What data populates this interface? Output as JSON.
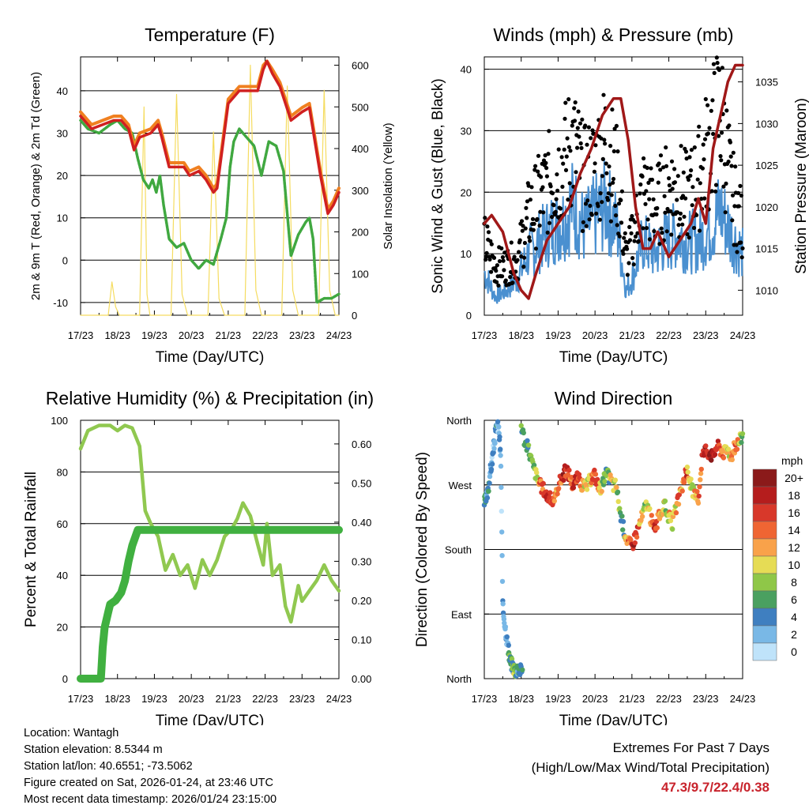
{
  "colors": {
    "temp_2m": "#d02020",
    "temp_9m": "#f08020",
    "dewpoint": "#40a840",
    "solar": "#f5dc60",
    "wind": "#4a90d0",
    "gust": "#000000",
    "pressure": "#a01818",
    "rh": "#90c850",
    "precip": "#40b040",
    "highlight": "#c8232c"
  },
  "chart_data": [
    {
      "id": "temperature",
      "type": "line",
      "title": "Temperature (F)",
      "xlabel": "Time (Day/UTC)",
      "ylabel": "2m & 9m T (Red, Orange) & 2m Td (Green)",
      "y2label": "Solar Insolation (Yellow)",
      "categories": [
        "17/23",
        "18/23",
        "19/23",
        "20/23",
        "21/23",
        "22/23",
        "23/23",
        "24/23"
      ],
      "xlim": [
        0,
        7
      ],
      "ylim": [
        -13,
        48
      ],
      "y2lim": [
        0,
        620
      ],
      "yticks": [
        -10,
        0,
        10,
        20,
        30,
        40
      ],
      "y2ticks": [
        0,
        100,
        200,
        300,
        400,
        500,
        600
      ],
      "gridlines": [
        -10,
        0,
        10,
        20,
        30,
        40
      ],
      "series": [
        {
          "name": "2m T",
          "x": [
            0,
            0.3,
            0.6,
            0.9,
            1.1,
            1.3,
            1.45,
            1.6,
            1.9,
            2.1,
            2.2,
            2.4,
            2.6,
            2.8,
            2.95,
            3.2,
            3.4,
            3.6,
            3.7,
            4.0,
            4.3,
            4.6,
            4.8,
            4.95,
            5.05,
            5.2,
            5.4,
            5.7,
            6.0,
            6.2,
            6.5,
            6.7,
            6.85,
            7.0
          ],
          "values": [
            34,
            31,
            32,
            33,
            33,
            31,
            26,
            29,
            30,
            32,
            29,
            22,
            22,
            22,
            20,
            21,
            19,
            16,
            17,
            37,
            40,
            40,
            40,
            45,
            47,
            44,
            41,
            33,
            35,
            36,
            20,
            11,
            13,
            16
          ]
        },
        {
          "name": "9m T",
          "x": [
            0,
            0.3,
            0.6,
            0.9,
            1.1,
            1.3,
            1.45,
            1.6,
            1.9,
            2.1,
            2.2,
            2.4,
            2.6,
            2.8,
            2.95,
            3.2,
            3.4,
            3.6,
            3.7,
            4.0,
            4.3,
            4.6,
            4.8,
            4.95,
            5.05,
            5.2,
            5.4,
            5.7,
            6.0,
            6.2,
            6.5,
            6.7,
            6.85,
            7.0
          ],
          "values": [
            35,
            32,
            33,
            34,
            34,
            32,
            27,
            30,
            31,
            33,
            30,
            23,
            23,
            23,
            21,
            22,
            20,
            17,
            18,
            38,
            41,
            41,
            41,
            46,
            47,
            45,
            42,
            34,
            36,
            37,
            21,
            12,
            14,
            17
          ]
        },
        {
          "name": "2m Td",
          "x": [
            0,
            0.2,
            0.5,
            0.8,
            1.0,
            1.2,
            1.4,
            1.55,
            1.7,
            1.85,
            1.95,
            2.05,
            2.15,
            2.25,
            2.4,
            2.6,
            2.8,
            3.0,
            3.2,
            3.4,
            3.6,
            3.8,
            3.95,
            4.05,
            4.15,
            4.3,
            4.5,
            4.7,
            4.9,
            5.1,
            5.3,
            5.5,
            5.7,
            5.9,
            6.1,
            6.2,
            6.3,
            6.4,
            6.6,
            6.8,
            7.0
          ],
          "values": [
            33,
            31,
            30,
            32,
            33,
            31,
            30,
            24,
            19,
            17,
            19,
            16,
            20,
            13,
            5,
            3,
            4,
            0,
            -2,
            0,
            -1,
            5,
            10,
            22,
            28,
            31,
            29,
            27,
            20,
            28,
            27,
            21,
            1,
            6,
            9,
            10,
            5,
            -10,
            -9,
            -9,
            -8
          ]
        },
        {
          "name": "Solar",
          "axis": "y2",
          "x": [
            0,
            0.75,
            0.85,
            0.95,
            1.05,
            1.15,
            1.25,
            1.4,
            1.6,
            1.72,
            1.8,
            1.88,
            2.2,
            2.45,
            2.6,
            2.75,
            2.9,
            3.2,
            3.45,
            3.6,
            3.75,
            3.9,
            4.2,
            4.45,
            4.6,
            4.75,
            4.9,
            5.2,
            5.45,
            5.6,
            5.75,
            5.9,
            6.2,
            6.45,
            6.6,
            6.75,
            6.9,
            7.0
          ],
          "values": [
            0,
            0,
            80,
            20,
            0,
            0,
            0,
            0,
            0,
            500,
            50,
            0,
            0,
            0,
            530,
            50,
            0,
            0,
            0,
            440,
            40,
            0,
            0,
            0,
            600,
            60,
            0,
            0,
            0,
            550,
            60,
            0,
            0,
            0,
            540,
            60,
            0,
            0
          ]
        }
      ]
    },
    {
      "id": "winds",
      "type": "line",
      "title": "Winds (mph) & Pressure (mb)",
      "xlabel": "Time (Day/UTC)",
      "ylabel": "Sonic Wind & Gust (Blue, Black)",
      "y2label": "Station Pressure (Maroon)",
      "categories": [
        "17/23",
        "18/23",
        "19/23",
        "20/23",
        "21/23",
        "22/23",
        "23/23",
        "24/23"
      ],
      "xlim": [
        0,
        7
      ],
      "ylim": [
        0,
        42
      ],
      "y2lim": [
        1007,
        1038
      ],
      "yticks": [
        0,
        10,
        20,
        30,
        40
      ],
      "y2ticks": [
        1010,
        1015,
        1020,
        1025,
        1030,
        1035
      ],
      "gridlines": [
        10,
        20,
        30,
        40
      ],
      "series": [
        {
          "name": "Sonic Wind",
          "x": [
            0,
            0.3,
            0.6,
            0.9,
            1.2,
            1.5,
            1.8,
            2.1,
            2.4,
            2.7,
            3.0,
            3.3,
            3.6,
            3.85,
            4.0,
            4.3,
            4.6,
            4.9,
            5.2,
            5.5,
            5.8,
            6.1,
            6.4,
            6.7,
            7.0
          ],
          "values": [
            7,
            3,
            4,
            6,
            10,
            12,
            14,
            15,
            18,
            14,
            16,
            18,
            14,
            4,
            6,
            12,
            10,
            12,
            13,
            12,
            12,
            14,
            17,
            13,
            10
          ]
        },
        {
          "name": "Gust",
          "x": [
            0,
            0.3,
            0.6,
            0.9,
            1.2,
            1.5,
            1.8,
            2.1,
            2.4,
            2.7,
            3.0,
            3.3,
            3.6,
            3.85,
            4.0,
            4.3,
            4.6,
            4.9,
            5.2,
            5.5,
            5.8,
            6.1,
            6.4,
            6.7,
            7.0
          ],
          "values": [
            12,
            8,
            8,
            9,
            16,
            19,
            22,
            24,
            28,
            22,
            24,
            28,
            22,
            9,
            12,
            20,
            17,
            20,
            21,
            19,
            22,
            28,
            33,
            20,
            14
          ]
        },
        {
          "name": "Pressure",
          "axis": "y2",
          "x": [
            0,
            0.2,
            0.5,
            0.8,
            1.0,
            1.2,
            1.4,
            1.7,
            2.0,
            2.3,
            2.6,
            2.9,
            3.2,
            3.5,
            3.7,
            3.9,
            4.1,
            4.3,
            4.5,
            4.7,
            5.0,
            5.3,
            5.6,
            5.8,
            6.0,
            6.2,
            6.4,
            6.6,
            6.8,
            7.0
          ],
          "values": [
            1018,
            1019,
            1017,
            1012,
            1010,
            1009,
            1012,
            1016,
            1018,
            1020,
            1024,
            1027,
            1031,
            1033,
            1033,
            1028,
            1020,
            1015,
            1015,
            1017,
            1014,
            1016,
            1018,
            1021,
            1018,
            1027,
            1031,
            1035,
            1037,
            1037
          ]
        }
      ]
    },
    {
      "id": "humidity",
      "type": "line",
      "title": "Relative Humidity (%) & Precipitation (in)",
      "xlabel": "Time (Day/UTC)",
      "ylabel": "Percent & Total Rainfall",
      "categories": [
        "17/23",
        "18/23",
        "19/23",
        "20/23",
        "21/23",
        "22/23",
        "23/23",
        "24/23"
      ],
      "xlim": [
        0,
        7
      ],
      "ylim": [
        0,
        100
      ],
      "y2lim": [
        0,
        0.6604
      ],
      "yticks": [
        0,
        20,
        40,
        60,
        80,
        100
      ],
      "y2ticks": [
        "0.00",
        "0.10",
        "0.20",
        "0.30",
        "0.40",
        "0.50",
        "0.60"
      ],
      "gridlines": [
        20,
        40,
        60,
        80
      ],
      "series": [
        {
          "name": "RH",
          "x": [
            0,
            0.2,
            0.5,
            0.8,
            1.0,
            1.2,
            1.4,
            1.6,
            1.75,
            1.9,
            2.1,
            2.3,
            2.5,
            2.7,
            2.9,
            3.1,
            3.3,
            3.5,
            3.7,
            3.9,
            4.1,
            4.25,
            4.4,
            4.6,
            4.8,
            4.95,
            5.05,
            5.2,
            5.4,
            5.55,
            5.7,
            5.9,
            6.0,
            6.2,
            6.4,
            6.6,
            6.8,
            7.0
          ],
          "values": [
            89,
            96,
            98,
            98,
            96,
            98,
            97,
            90,
            65,
            60,
            55,
            42,
            48,
            40,
            44,
            35,
            46,
            40,
            46,
            55,
            58,
            62,
            68,
            63,
            52,
            44,
            60,
            40,
            44,
            28,
            22,
            36,
            30,
            34,
            38,
            44,
            38,
            34
          ]
        },
        {
          "name": "Precip",
          "axis": "y2",
          "x": [
            0,
            0.3,
            0.55,
            0.6,
            0.65,
            0.75,
            0.8,
            0.95,
            1.1,
            1.2,
            1.3,
            1.4,
            1.55,
            1.7,
            7.0
          ],
          "values": [
            0,
            0,
            0,
            0.08,
            0.13,
            0.17,
            0.19,
            0.2,
            0.22,
            0.25,
            0.3,
            0.34,
            0.38,
            0.38,
            0.38
          ]
        }
      ]
    },
    {
      "id": "wind_direction",
      "type": "scatter",
      "title": "Wind Direction",
      "xlabel": "Time (Day/UTC)",
      "ylabel": "Direction (Colored By Speed)",
      "categories": [
        "17/23",
        "18/23",
        "19/23",
        "20/23",
        "21/23",
        "22/23",
        "23/23",
        "24/23"
      ],
      "xlim": [
        0,
        7
      ],
      "ylim": [
        0,
        360
      ],
      "ytick_labels": [
        "North",
        "East",
        "South",
        "West",
        "North"
      ],
      "ytick_values": [
        0,
        90,
        180,
        270,
        360
      ],
      "gridlines": [
        90,
        180,
        270
      ],
      "legend_title": "mph",
      "legend_labels": [
        "20+",
        "18",
        "16",
        "14",
        "12",
        "10",
        "8",
        "6",
        "4",
        "2",
        "0"
      ],
      "legend_colors": [
        "#8b1a1a",
        "#b51d1d",
        "#d8382a",
        "#ef6533",
        "#f9a24a",
        "#e6dc55",
        "#8fc748",
        "#4aa060",
        "#3f7fc0",
        "#79b8e6",
        "#bfe3fa"
      ],
      "points": [
        {
          "x": [
            0,
            0.05,
            0.1,
            0.15,
            0.2,
            0.25,
            0.3,
            0.35,
            0.4,
            0.45,
            0.5,
            0.55,
            0.6,
            0.65,
            0.7,
            0.75,
            0.8,
            0.85,
            0.9,
            0.95
          ],
          "values": [
            245,
            250,
            260,
            285,
            300,
            320,
            340,
            355,
            345,
            300,
            100,
            80,
            60,
            40,
            25,
            20,
            15,
            10,
            15,
            12
          ],
          "speeds": [
            6,
            4,
            5,
            3,
            2,
            3,
            4,
            2,
            3,
            2,
            4,
            3,
            2,
            6,
            4,
            6,
            8,
            6,
            4,
            5
          ]
        },
        {
          "x": [
            1.0,
            1.1,
            1.2,
            1.3,
            1.4,
            1.5,
            1.6,
            1.7,
            1.8,
            1.9,
            2.0,
            2.1,
            2.2,
            2.3,
            2.4,
            2.5,
            2.6,
            2.7,
            2.8,
            2.9,
            3.0,
            3.1,
            3.2,
            3.3,
            3.4,
            3.5
          ],
          "values": [
            355,
            330,
            320,
            300,
            285,
            270,
            265,
            255,
            250,
            245,
            270,
            280,
            290,
            285,
            270,
            280,
            275,
            265,
            270,
            280,
            285,
            265,
            270,
            285,
            280,
            270
          ],
          "speeds": [
            6,
            5,
            7,
            8,
            10,
            14,
            16,
            18,
            15,
            12,
            14,
            18,
            16,
            14,
            17,
            15,
            12,
            10,
            8,
            14,
            16,
            10,
            8,
            6,
            12,
            10
          ]
        },
        {
          "x": [
            3.6,
            3.7,
            3.8,
            3.9,
            4.0,
            4.1,
            4.2,
            4.3,
            4.4,
            4.5,
            4.6,
            4.7,
            4.8,
            4.9,
            5.0,
            5.1,
            5.2,
            5.3,
            5.4,
            5.5,
            5.6,
            5.7,
            5.8,
            5.9,
            6.0,
            6.1,
            6.2,
            6.3,
            6.4,
            6.5,
            6.6,
            6.7,
            6.8,
            6.9,
            7.0
          ],
          "values": [
            260,
            225,
            205,
            190,
            185,
            200,
            215,
            230,
            245,
            225,
            210,
            220,
            235,
            240,
            225,
            215,
            240,
            255,
            275,
            290,
            270,
            255,
            250,
            310,
            320,
            315,
            310,
            325,
            320,
            315,
            320,
            310,
            325,
            330,
            340
          ],
          "speeds": [
            8,
            6,
            10,
            14,
            18,
            16,
            12,
            8,
            10,
            14,
            16,
            12,
            10,
            8,
            12,
            10,
            14,
            12,
            16,
            10,
            8,
            12,
            14,
            18,
            16,
            20,
            18,
            16,
            14,
            12,
            10,
            12,
            14,
            8,
            10
          ]
        }
      ]
    }
  ],
  "station_info": {
    "location": "Location: Wantagh",
    "elevation": "Station elevation: 8.5344 m",
    "latlon": "Station lat/lon: 40.6551; -73.5062",
    "created": "Figure created on Sat, 2026-01-24, at 23:46 UTC",
    "recent": "Most recent data timestamp: 2026/01/24 23:15:00"
  },
  "extremes": {
    "title": "Extremes For Past 7 Days",
    "subtitle": "(High/Low/Max Wind/Total Precipitation)",
    "values": "47.3/9.7/22.4/0.38"
  }
}
